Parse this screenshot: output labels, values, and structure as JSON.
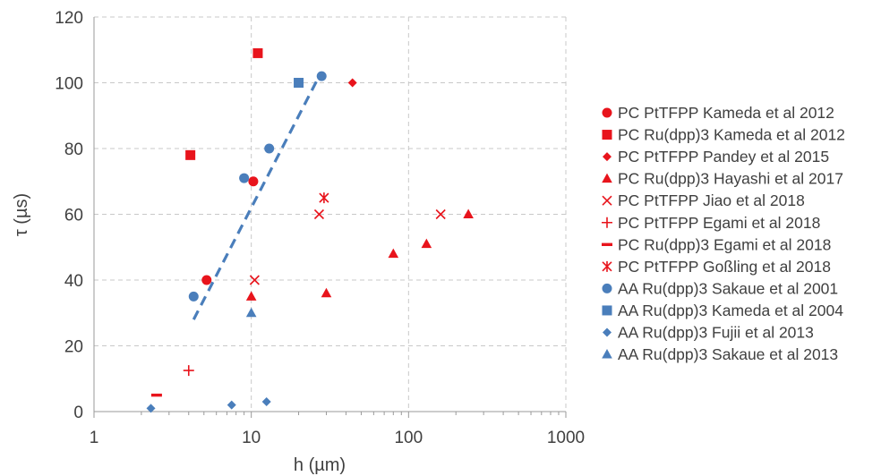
{
  "chart_data": {
    "type": "scatter",
    "xlabel": "h (µm)",
    "ylabel": "τ (µs)",
    "x_scale": "log",
    "xlim": [
      1,
      1000
    ],
    "ylim": [
      0,
      120
    ],
    "x_ticks": [
      1,
      10,
      100,
      1000
    ],
    "x_tick_labels": [
      "1",
      "10",
      "100",
      "1000"
    ],
    "y_ticks": [
      0,
      20,
      40,
      60,
      80,
      100,
      120
    ],
    "y_tick_labels": [
      "0",
      "20",
      "40",
      "60",
      "80",
      "100",
      "120"
    ],
    "grid": "dashed",
    "legend_position": "right",
    "series": [
      {
        "name": "PC PtTFPP Kameda et al 2012",
        "marker": "circle",
        "color": "#e8141c",
        "points": [
          [
            5.2,
            40
          ],
          [
            10.3,
            70
          ]
        ]
      },
      {
        "name": "PC Ru(dpp)3 Kameda et al 2012",
        "marker": "square",
        "color": "#e8141c",
        "points": [
          [
            4.1,
            78
          ],
          [
            11.0,
            109
          ]
        ]
      },
      {
        "name": "PC PtTFPP Pandey et al 2015",
        "marker": "diamond",
        "color": "#e8141c",
        "points": [
          [
            44,
            100
          ]
        ]
      },
      {
        "name": "PC Ru(dpp)3 Hayashi et al 2017",
        "marker": "triangle",
        "color": "#e8141c",
        "points": [
          [
            10,
            35
          ],
          [
            30,
            36
          ],
          [
            80,
            48
          ],
          [
            130,
            51
          ],
          [
            240,
            60
          ]
        ]
      },
      {
        "name": "PC PtTFPP Jiao et al 2018",
        "marker": "x",
        "color": "#e8141c",
        "points": [
          [
            10.5,
            40
          ],
          [
            27,
            60
          ],
          [
            160,
            60
          ]
        ]
      },
      {
        "name": "PC PtTFPP Egami et al 2018",
        "marker": "plus",
        "color": "#e8141c",
        "points": [
          [
            4,
            12.5
          ]
        ]
      },
      {
        "name": "PC Ru(dpp)3 Egami et al 2018",
        "marker": "dash",
        "color": "#e8141c",
        "points": [
          [
            2.5,
            5
          ]
        ]
      },
      {
        "name": "PC PtTFPP Goßling et al 2018",
        "marker": "asterisk",
        "color": "#e8141c",
        "points": [
          [
            29,
            65
          ]
        ]
      },
      {
        "name": "AA Ru(dpp)3 Sakaue et al 2001",
        "marker": "circle",
        "color": "#4a7ebb",
        "points": [
          [
            4.3,
            35
          ],
          [
            9,
            71
          ],
          [
            13,
            80
          ],
          [
            28,
            102
          ]
        ]
      },
      {
        "name": "AA Ru(dpp)3 Kameda et al 2004",
        "marker": "square",
        "color": "#4a7ebb",
        "points": [
          [
            20,
            100
          ]
        ]
      },
      {
        "name": "AA Ru(dpp)3 Fujii et al 2013",
        "marker": "diamond",
        "color": "#4a7ebb",
        "points": [
          [
            2.3,
            1
          ],
          [
            7.5,
            2
          ],
          [
            12.5,
            3
          ]
        ]
      },
      {
        "name": "AA Ru(dpp)3 Sakaue et al 2013",
        "marker": "triangle",
        "color": "#4a7ebb",
        "points": [
          [
            10,
            30
          ]
        ]
      }
    ],
    "trendline": {
      "style": "dashed",
      "color": "#4a7ebb",
      "points": [
        [
          4.3,
          28
        ],
        [
          27,
          102
        ]
      ]
    }
  }
}
